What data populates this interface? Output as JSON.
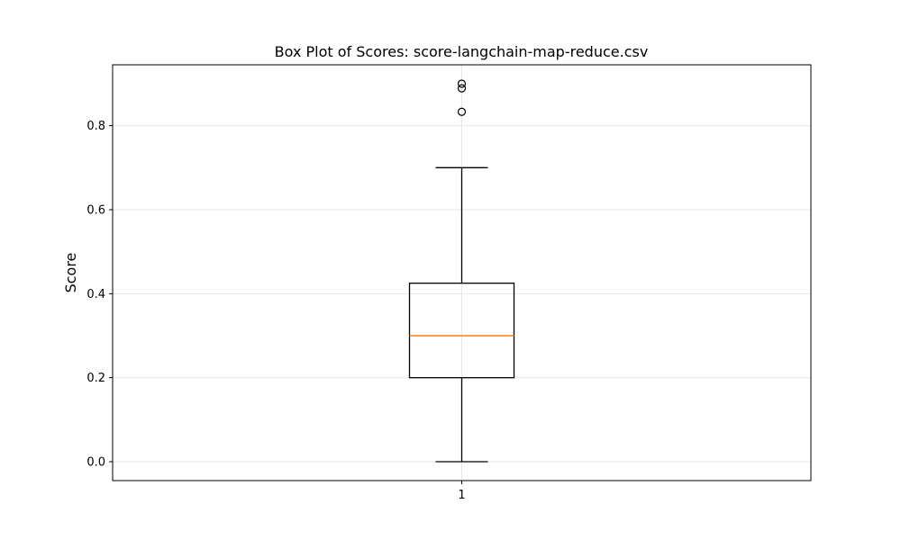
{
  "chart_data": {
    "type": "box",
    "title": "Box Plot of Scores: score-langchain-map-reduce.csv",
    "xlabel": "",
    "ylabel": "Score",
    "ylim": [
      -0.045,
      0.945
    ],
    "yticks": [
      0.0,
      0.2,
      0.4,
      0.6,
      0.8
    ],
    "ytick_labels": [
      "0.0",
      "0.2",
      "0.4",
      "0.6",
      "0.8"
    ],
    "grid": true,
    "categories": [
      "1"
    ],
    "boxes": [
      {
        "category": "1",
        "whisker_low": 0.0,
        "q1": 0.2,
        "median": 0.3,
        "q3": 0.425,
        "whisker_high": 0.7,
        "outliers": [
          0.833,
          0.889,
          0.9
        ]
      }
    ],
    "colors": {
      "box": "#000000",
      "median": "#ff7f0e",
      "grid": "#e6e6e6"
    }
  }
}
